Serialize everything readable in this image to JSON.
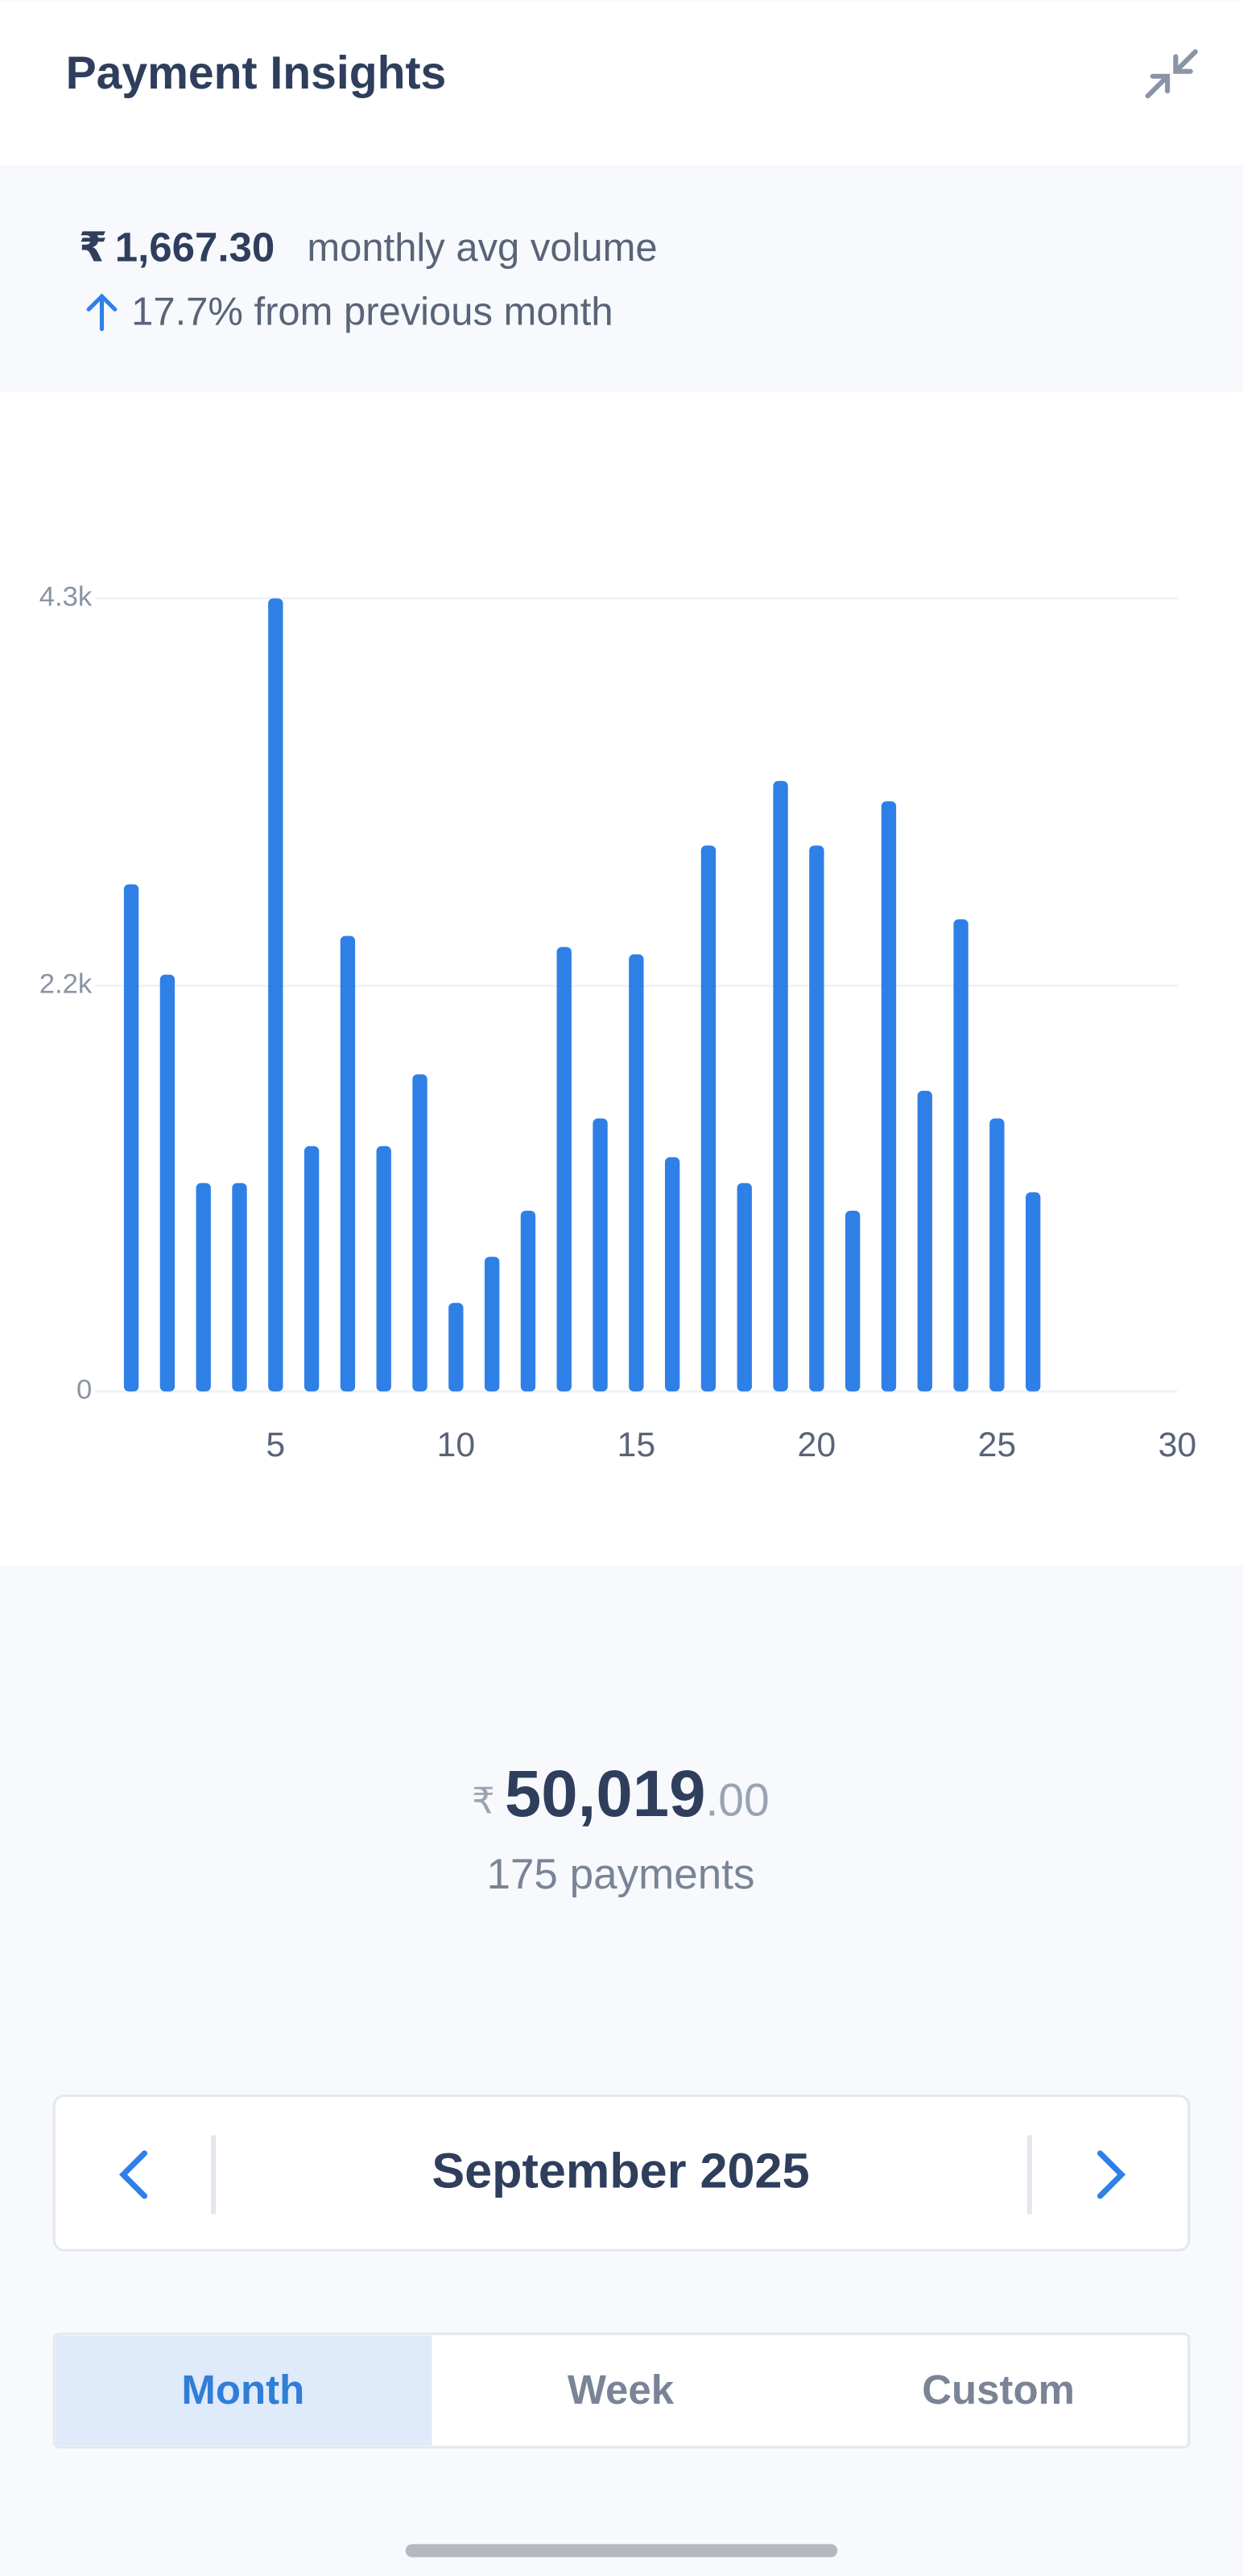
{
  "header": {
    "title": "Payment Insights"
  },
  "summary": {
    "currency": "₹",
    "amount": "1,667.30",
    "amount_caption": "monthly avg volume",
    "change": "17.7% from previous month"
  },
  "chart_data": {
    "type": "bar",
    "color": "#2f80e6",
    "grid": true,
    "x": [
      1,
      2,
      3,
      4,
      5,
      6,
      7,
      8,
      9,
      10,
      11,
      12,
      13,
      14,
      15,
      16,
      17,
      18,
      19,
      20,
      21,
      22,
      23,
      24,
      25,
      26
    ],
    "values": [
      2750,
      2260,
      1130,
      1130,
      4300,
      1330,
      2470,
      1330,
      1720,
      480,
      730,
      980,
      2410,
      1480,
      2370,
      1270,
      2960,
      1130,
      3310,
      2960,
      980,
      3200,
      1630,
      2560,
      1480,
      1080
    ],
    "xlim": [
      0,
      30
    ],
    "xticks": [
      5,
      10,
      15,
      20,
      25,
      30
    ],
    "ylim": [
      0,
      4300
    ],
    "yticks": [
      0,
      {
        "value": 2200,
        "label": "2.2k"
      },
      {
        "value": 4300,
        "label": "4.3k"
      }
    ]
  },
  "total": {
    "currency": "₹",
    "amount": "50,019",
    "decimals": ".00",
    "count": "175 payments"
  },
  "period": {
    "label": "September 2025"
  },
  "tabs": [
    "Month",
    "Week",
    "Custom"
  ]
}
